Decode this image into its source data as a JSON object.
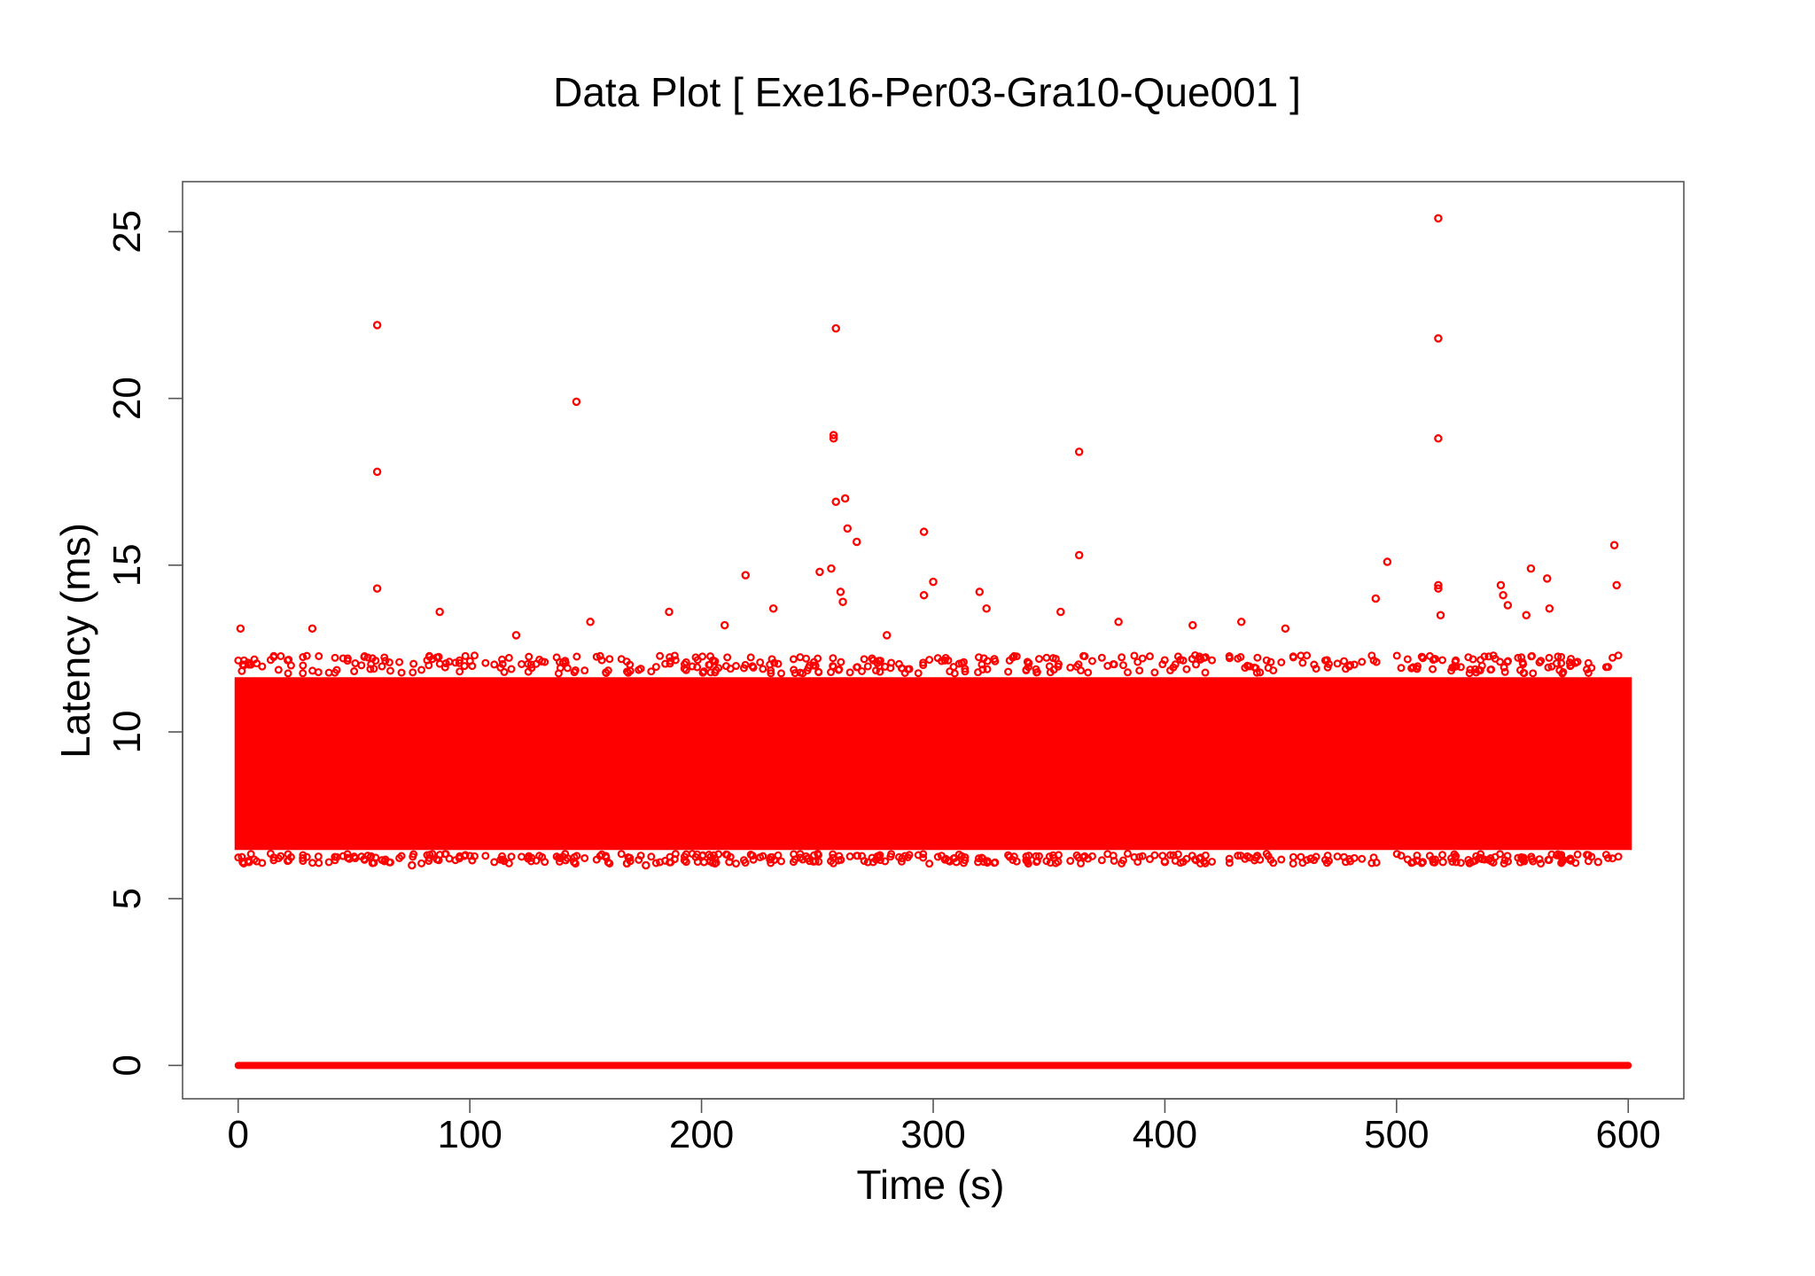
{
  "chart_data": {
    "type": "scatter",
    "title": "Data Plot [ Exe16-Per03-Gra10-Que001 ]",
    "xlabel": "Time (s)",
    "ylabel": "Latency (ms)",
    "xlim": [
      -24,
      624
    ],
    "ylim": [
      -1,
      26.5
    ],
    "x_ticks": [
      0,
      100,
      200,
      300,
      400,
      500,
      600
    ],
    "x_tick_labels": [
      "0",
      "100",
      "200",
      "300",
      "400",
      "500",
      "600"
    ],
    "y_ticks": [
      0,
      5,
      10,
      15,
      20,
      25
    ],
    "y_tick_labels": [
      "0",
      "5",
      "10",
      "15",
      "20",
      "25"
    ],
    "grid": false,
    "legend": "none",
    "marker_color": "#ff0000",
    "marker": "open-circle",
    "dense_band": {
      "x_range": [
        0,
        600
      ],
      "y_range": [
        6.3,
        11.8
      ],
      "description_value_ms": [
        6.3,
        11.8
      ]
    },
    "baseline_band": {
      "x_range": [
        0,
        600
      ],
      "y": 0
    },
    "series": [
      {
        "values_xy": [
          [
            60,
            22.2
          ],
          [
            60,
            17.8
          ],
          [
            60,
            14.3
          ],
          [
            146,
            19.9
          ],
          [
            258,
            22.1
          ],
          [
            257,
            18.9
          ],
          [
            257,
            18.8
          ],
          [
            258,
            16.9
          ],
          [
            262,
            17.0
          ],
          [
            263,
            16.1
          ],
          [
            267,
            15.7
          ],
          [
            256,
            14.9
          ],
          [
            251,
            14.8
          ],
          [
            260,
            14.2
          ],
          [
            261,
            13.9
          ],
          [
            296,
            16.0
          ],
          [
            300,
            14.5
          ],
          [
            296,
            14.1
          ],
          [
            320,
            14.2
          ],
          [
            323,
            13.7
          ],
          [
            363,
            18.4
          ],
          [
            363,
            15.3
          ],
          [
            355,
            13.6
          ],
          [
            518,
            25.4
          ],
          [
            518,
            21.8
          ],
          [
            518,
            18.8
          ],
          [
            518,
            14.4
          ],
          [
            518,
            14.3
          ],
          [
            496,
            15.1
          ],
          [
            491,
            14.0
          ],
          [
            519,
            13.5
          ],
          [
            558,
            14.9
          ],
          [
            545,
            14.4
          ],
          [
            565,
            14.6
          ],
          [
            546,
            14.1
          ],
          [
            594,
            15.6
          ],
          [
            595,
            14.4
          ],
          [
            548,
            13.8
          ],
          [
            556,
            13.5
          ],
          [
            566,
            13.7
          ],
          [
            219,
            14.7
          ],
          [
            186,
            13.6
          ],
          [
            87,
            13.6
          ],
          [
            231,
            13.7
          ],
          [
            152,
            13.3
          ],
          [
            1,
            13.1
          ],
          [
            32,
            13.1
          ],
          [
            120,
            12.9
          ],
          [
            280,
            12.9
          ],
          [
            412,
            13.2
          ],
          [
            433,
            13.3
          ],
          [
            452,
            13.1
          ],
          [
            380,
            13.3
          ],
          [
            210,
            13.2
          ],
          [
            2,
            6.1
          ],
          [
            48,
            6.2
          ],
          [
            75,
            6.0
          ],
          [
            145,
            6.1
          ],
          [
            176,
            6.0
          ],
          [
            212,
            6.1
          ],
          [
            310,
            6.1
          ],
          [
            400,
            6.1
          ],
          [
            463,
            6.2
          ],
          [
            520,
            6.1
          ],
          [
            587,
            6.1
          ]
        ]
      }
    ]
  }
}
